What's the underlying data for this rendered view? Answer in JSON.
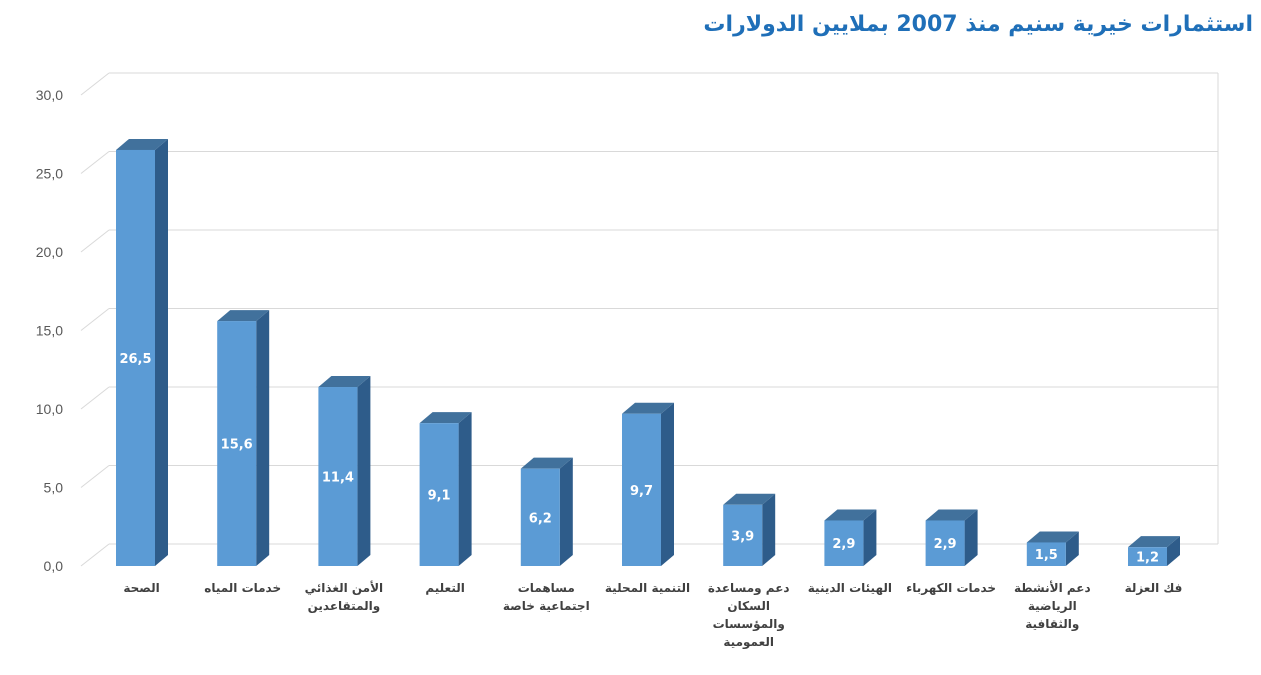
{
  "chart_data": {
    "type": "bar",
    "title": "استثمارات خيرية سنيم منذ  2007 بملايين الدولارات",
    "xlabel": "",
    "ylabel": "",
    "ylim": [
      0,
      30
    ],
    "yticks": [
      "0,0",
      "5,0",
      "10,0",
      "15,0",
      "20,0",
      "25,0",
      "30,0"
    ],
    "categories": [
      "الصحة",
      "خدمات المياه",
      "الأمن الغذائي والمتقاعدين",
      "التعليم",
      "مساهمات اجتماعية خاصة",
      "التنمية المحلية",
      "دعم ومساعدة السكان والمؤسسات العمومية",
      "الهيئات الدينية",
      "خدمات الكهرباء",
      "دعم الأنشطة الرياضية والثقافية",
      "فك العزلة"
    ],
    "category_lines": [
      [
        "الصحة"
      ],
      [
        "خدمات المياه"
      ],
      [
        "الأمن الغذائي",
        "والمتقاعدين"
      ],
      [
        "التعليم"
      ],
      [
        "مساهمات",
        "اجتماعية خاصة"
      ],
      [
        "التنمية المحلية"
      ],
      [
        "دعم ومساعدة",
        "السكان",
        "والمؤسسات",
        "العمومية"
      ],
      [
        "الهيئات الدينية"
      ],
      [
        "خدمات الكهرباء"
      ],
      [
        "دعم الأنشطة",
        "الرياضية",
        "والثقافية"
      ],
      [
        "فك العزلة"
      ]
    ],
    "values": [
      26.5,
      15.6,
      11.4,
      9.1,
      6.2,
      9.7,
      3.9,
      2.9,
      2.9,
      1.5,
      1.2
    ],
    "value_labels": [
      "26,5",
      "15,6",
      "11,4",
      "9,1",
      "6,2",
      "9,7",
      "3,9",
      "2,9",
      "2,9",
      "1,5",
      "1,2"
    ],
    "grid": true,
    "legend": "none",
    "style": "3d-column"
  },
  "colors": {
    "bar_front": "#5b9bd5",
    "bar_side": "#2e5c8a",
    "bar_top": "#41719c",
    "grid": "#d9d9d9",
    "title": "#1f6fb8"
  }
}
